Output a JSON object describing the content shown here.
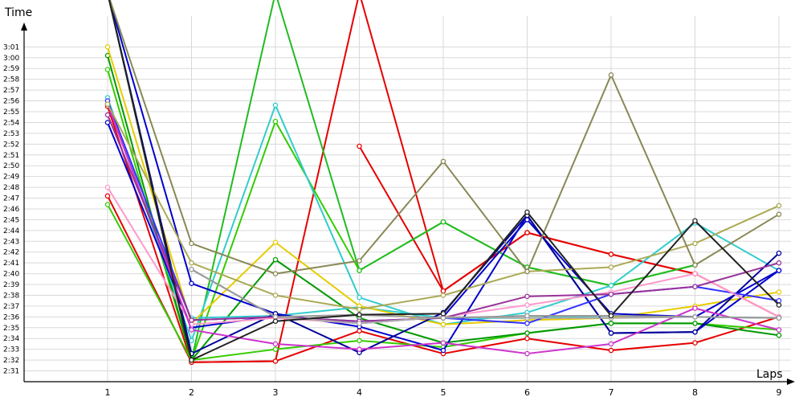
{
  "chart_data": {
    "type": "line",
    "title": "",
    "xlabel": "Laps",
    "ylabel": "Time",
    "grid": true,
    "legend": "none",
    "x": [
      1,
      2,
      3,
      4,
      5,
      6,
      7,
      8,
      9
    ],
    "ylim": [
      2.0,
      183.0
    ],
    "y_ticks_seconds": [
      151,
      152,
      153,
      154,
      155,
      156,
      157,
      158,
      159,
      160,
      161,
      162,
      163,
      164,
      165,
      166,
      167,
      168,
      169,
      170,
      171,
      172,
      173,
      174,
      175,
      176,
      177,
      178,
      179,
      180,
      181
    ],
    "y_tick_labels": [
      "2:31",
      "2:32",
      "2:33",
      "2:34",
      "2:35",
      "2:36",
      "2:37",
      "2:38",
      "2:39",
      "2:40",
      "2:41",
      "2:42",
      "2:43",
      "2:44",
      "2:45",
      "2:46",
      "2:47",
      "2:48",
      "2:49",
      "2:50",
      "2:51",
      "2:52",
      "2:53",
      "2:54",
      "2:55",
      "2:56",
      "2:57",
      "2:58",
      "2:59",
      "3:00",
      "3:01"
    ],
    "series": [
      {
        "color": "#e60000",
        "values": [
          167.2,
          151.8,
          151.9,
          186.0,
          158.4,
          163.8,
          161.8,
          160.0,
          156.0
        ]
      },
      {
        "color": "#e60000",
        "values": [
          175.5,
          151.8,
          151.9,
          154.7,
          152.6,
          154.0,
          152.9,
          153.6,
          156.0
        ]
      },
      {
        "color": "#e60000",
        "values": [
          null,
          null,
          null,
          171.8,
          158.4,
          163.8,
          161.8,
          160.0,
          null
        ]
      },
      {
        "color": "#33cc00",
        "values": [
          166.4,
          152.0,
          153.0,
          153.8,
          153.2,
          154.5,
          155.4,
          155.4,
          154.8
        ]
      },
      {
        "color": "#33cc00",
        "values": [
          178.9,
          152.0,
          174.1,
          160.3,
          164.8,
          160.6,
          158.9,
          160.8,
          null
        ]
      },
      {
        "color": "#009900",
        "values": [
          180.2,
          152.0,
          161.3,
          155.9,
          153.6,
          154.5,
          155.4,
          155.4,
          154.3
        ]
      },
      {
        "color": "#22bb22",
        "values": [
          186.0,
          152.0,
          186.0,
          160.3,
          164.8,
          160.6,
          158.9,
          160.8,
          null
        ]
      },
      {
        "color": "#33cccc",
        "values": [
          176.3,
          153.8,
          175.6,
          157.8,
          155.3,
          156.4,
          158.9,
          164.7,
          160.3
        ]
      },
      {
        "color": "#33cccc",
        "values": [
          null,
          155.9,
          156.1,
          156.9,
          155.9,
          155.9,
          156.1,
          156.0,
          155.9
        ]
      },
      {
        "color": "#e6cc00",
        "values": [
          181.0,
          155.4,
          162.9,
          157.0,
          155.3,
          155.7,
          155.9,
          157.0,
          158.3
        ]
      },
      {
        "color": "#0000cc",
        "values": [
          186.0,
          159.1,
          156.3,
          155.1,
          152.9,
          165.4,
          154.5,
          154.6,
          160.3
        ]
      },
      {
        "color": "#0000cc",
        "values": [
          174.0,
          155.0,
          156.1,
          155.4,
          156.0,
          165.0,
          156.3,
          156.0,
          160.3
        ]
      },
      {
        "color": "#000099",
        "values": [
          186.0,
          152.6,
          156.3,
          152.7,
          156.4,
          165.4,
          154.5,
          154.6,
          161.9
        ]
      },
      {
        "color": "#3333ff",
        "values": [
          176.0,
          155.7,
          156.0,
          155.6,
          155.9,
          155.4,
          158.1,
          158.8,
          157.5
        ]
      },
      {
        "color": "#ff99cc",
        "values": [
          168.0,
          155.3,
          155.9,
          155.4,
          156.0,
          157.1,
          158.3,
          160.0,
          156.0
        ]
      },
      {
        "color": "#cc33cc",
        "values": [
          175.7,
          154.8,
          153.5,
          153.0,
          153.6,
          152.6,
          153.5,
          156.8,
          154.8
        ]
      },
      {
        "color": "#993399",
        "values": [
          174.7,
          155.7,
          156.0,
          155.6,
          155.9,
          157.9,
          158.1,
          158.8,
          161.0
        ]
      },
      {
        "color": "#aaaa55",
        "values": [
          175.7,
          161.0,
          158.0,
          156.7,
          158.0,
          160.2,
          160.6,
          162.8,
          166.3
        ]
      },
      {
        "color": "#aaaaaa",
        "values": [
          null,
          160.4,
          156.0,
          155.4,
          156.0,
          155.9,
          155.9,
          156.0,
          155.9
        ]
      },
      {
        "color": "#999999",
        "values": [
          null,
          160.4,
          156.0,
          156.2,
          155.9,
          156.1,
          156.1,
          156.0,
          155.9
        ]
      },
      {
        "color": "#888855",
        "values": [
          186.0,
          162.8,
          160.0,
          161.2,
          170.4,
          160.2,
          178.4,
          160.8,
          165.5
        ]
      },
      {
        "color": "#222222",
        "values": [
          186.0,
          152.0,
          155.6,
          156.2,
          156.3,
          165.7,
          156.1,
          164.9,
          157.1
        ]
      }
    ]
  }
}
